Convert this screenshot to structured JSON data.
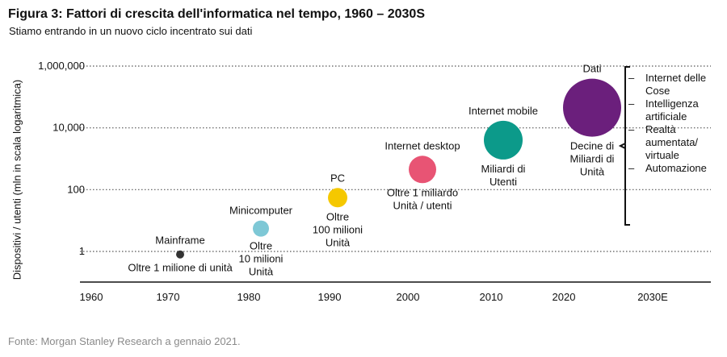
{
  "title": "Figura 3: Fattori di crescita dell'informatica nel tempo, 1960 – 2030S",
  "subtitle": "Stiamo entrando in un nuovo ciclo incentrato sui dati",
  "source": "Fonte: Morgan Stanley Research a gennaio 2021.",
  "trends": [
    {
      "dash": "–",
      "text": "Internet delle Cose"
    },
    {
      "dash": "–",
      "text": "Intelligenza artificiale"
    },
    {
      "dash": "–",
      "text": "Realtà aumentata/ virtuale"
    },
    {
      "dash": "–",
      "text": "Automazione"
    }
  ],
  "chart_data": {
    "type": "scatter",
    "title": "Figura 3: Fattori di crescita dell'informatica nel tempo, 1960 – 2030S",
    "xlabel": "",
    "ylabel": "Dispositivi / utenti (mln in scala logaritmica)",
    "y_scale": "log",
    "ylim": [
      0.1,
      1000000
    ],
    "x_ticks": [
      "1960",
      "1970",
      "1980",
      "1990",
      "2000",
      "2010",
      "2020",
      "2030E"
    ],
    "y_ticks": [
      {
        "value": 1,
        "label": "1"
      },
      {
        "value": 100,
        "label": "100"
      },
      {
        "value": 10000,
        "label": "10,000"
      },
      {
        "value": 1000000,
        "label": "1,000,000"
      }
    ],
    "grid": "horizontal dotted",
    "series": [
      {
        "name": "Mainframe",
        "x": 1971,
        "y": 0.8,
        "size": 1,
        "color": "#333333",
        "label": [
          "Mainframe"
        ],
        "caption": [
          "Oltre 1 milione di unità"
        ]
      },
      {
        "name": "Minicomputer",
        "x": 1981,
        "y": 5.5,
        "size": 2,
        "color": "#7ec8d6",
        "label": [
          "Minicomputer"
        ],
        "caption": [
          "Oltre",
          "10 milioni",
          "Unità"
        ]
      },
      {
        "name": "PC",
        "x": 1990.5,
        "y": 55,
        "size": 3,
        "color": "#f5c800",
        "label": [
          "PC"
        ],
        "caption": [
          "Oltre",
          "100 milioni",
          "Unità"
        ]
      },
      {
        "name": "Internet desktop",
        "x": 2001,
        "y": 450,
        "size": 4,
        "color": "#e85474",
        "label": [
          "Internet desktop"
        ],
        "caption": [
          "Oltre 1 miliardo",
          "Unità / utenti"
        ]
      },
      {
        "name": "Internet mobile",
        "x": 2011,
        "y": 4000,
        "size": 5,
        "color": "#0c9a8a",
        "label": [
          "Internet mobile"
        ],
        "caption": [
          "Miliardi di",
          "Utenti"
        ]
      },
      {
        "name": "Dati",
        "x": 2022,
        "y": 45000,
        "size": 6,
        "color": "#6b1f7c",
        "label": [
          "Dati"
        ],
        "caption": [
          "Decine di",
          "Miliardi di",
          "Unità"
        ]
      }
    ]
  }
}
